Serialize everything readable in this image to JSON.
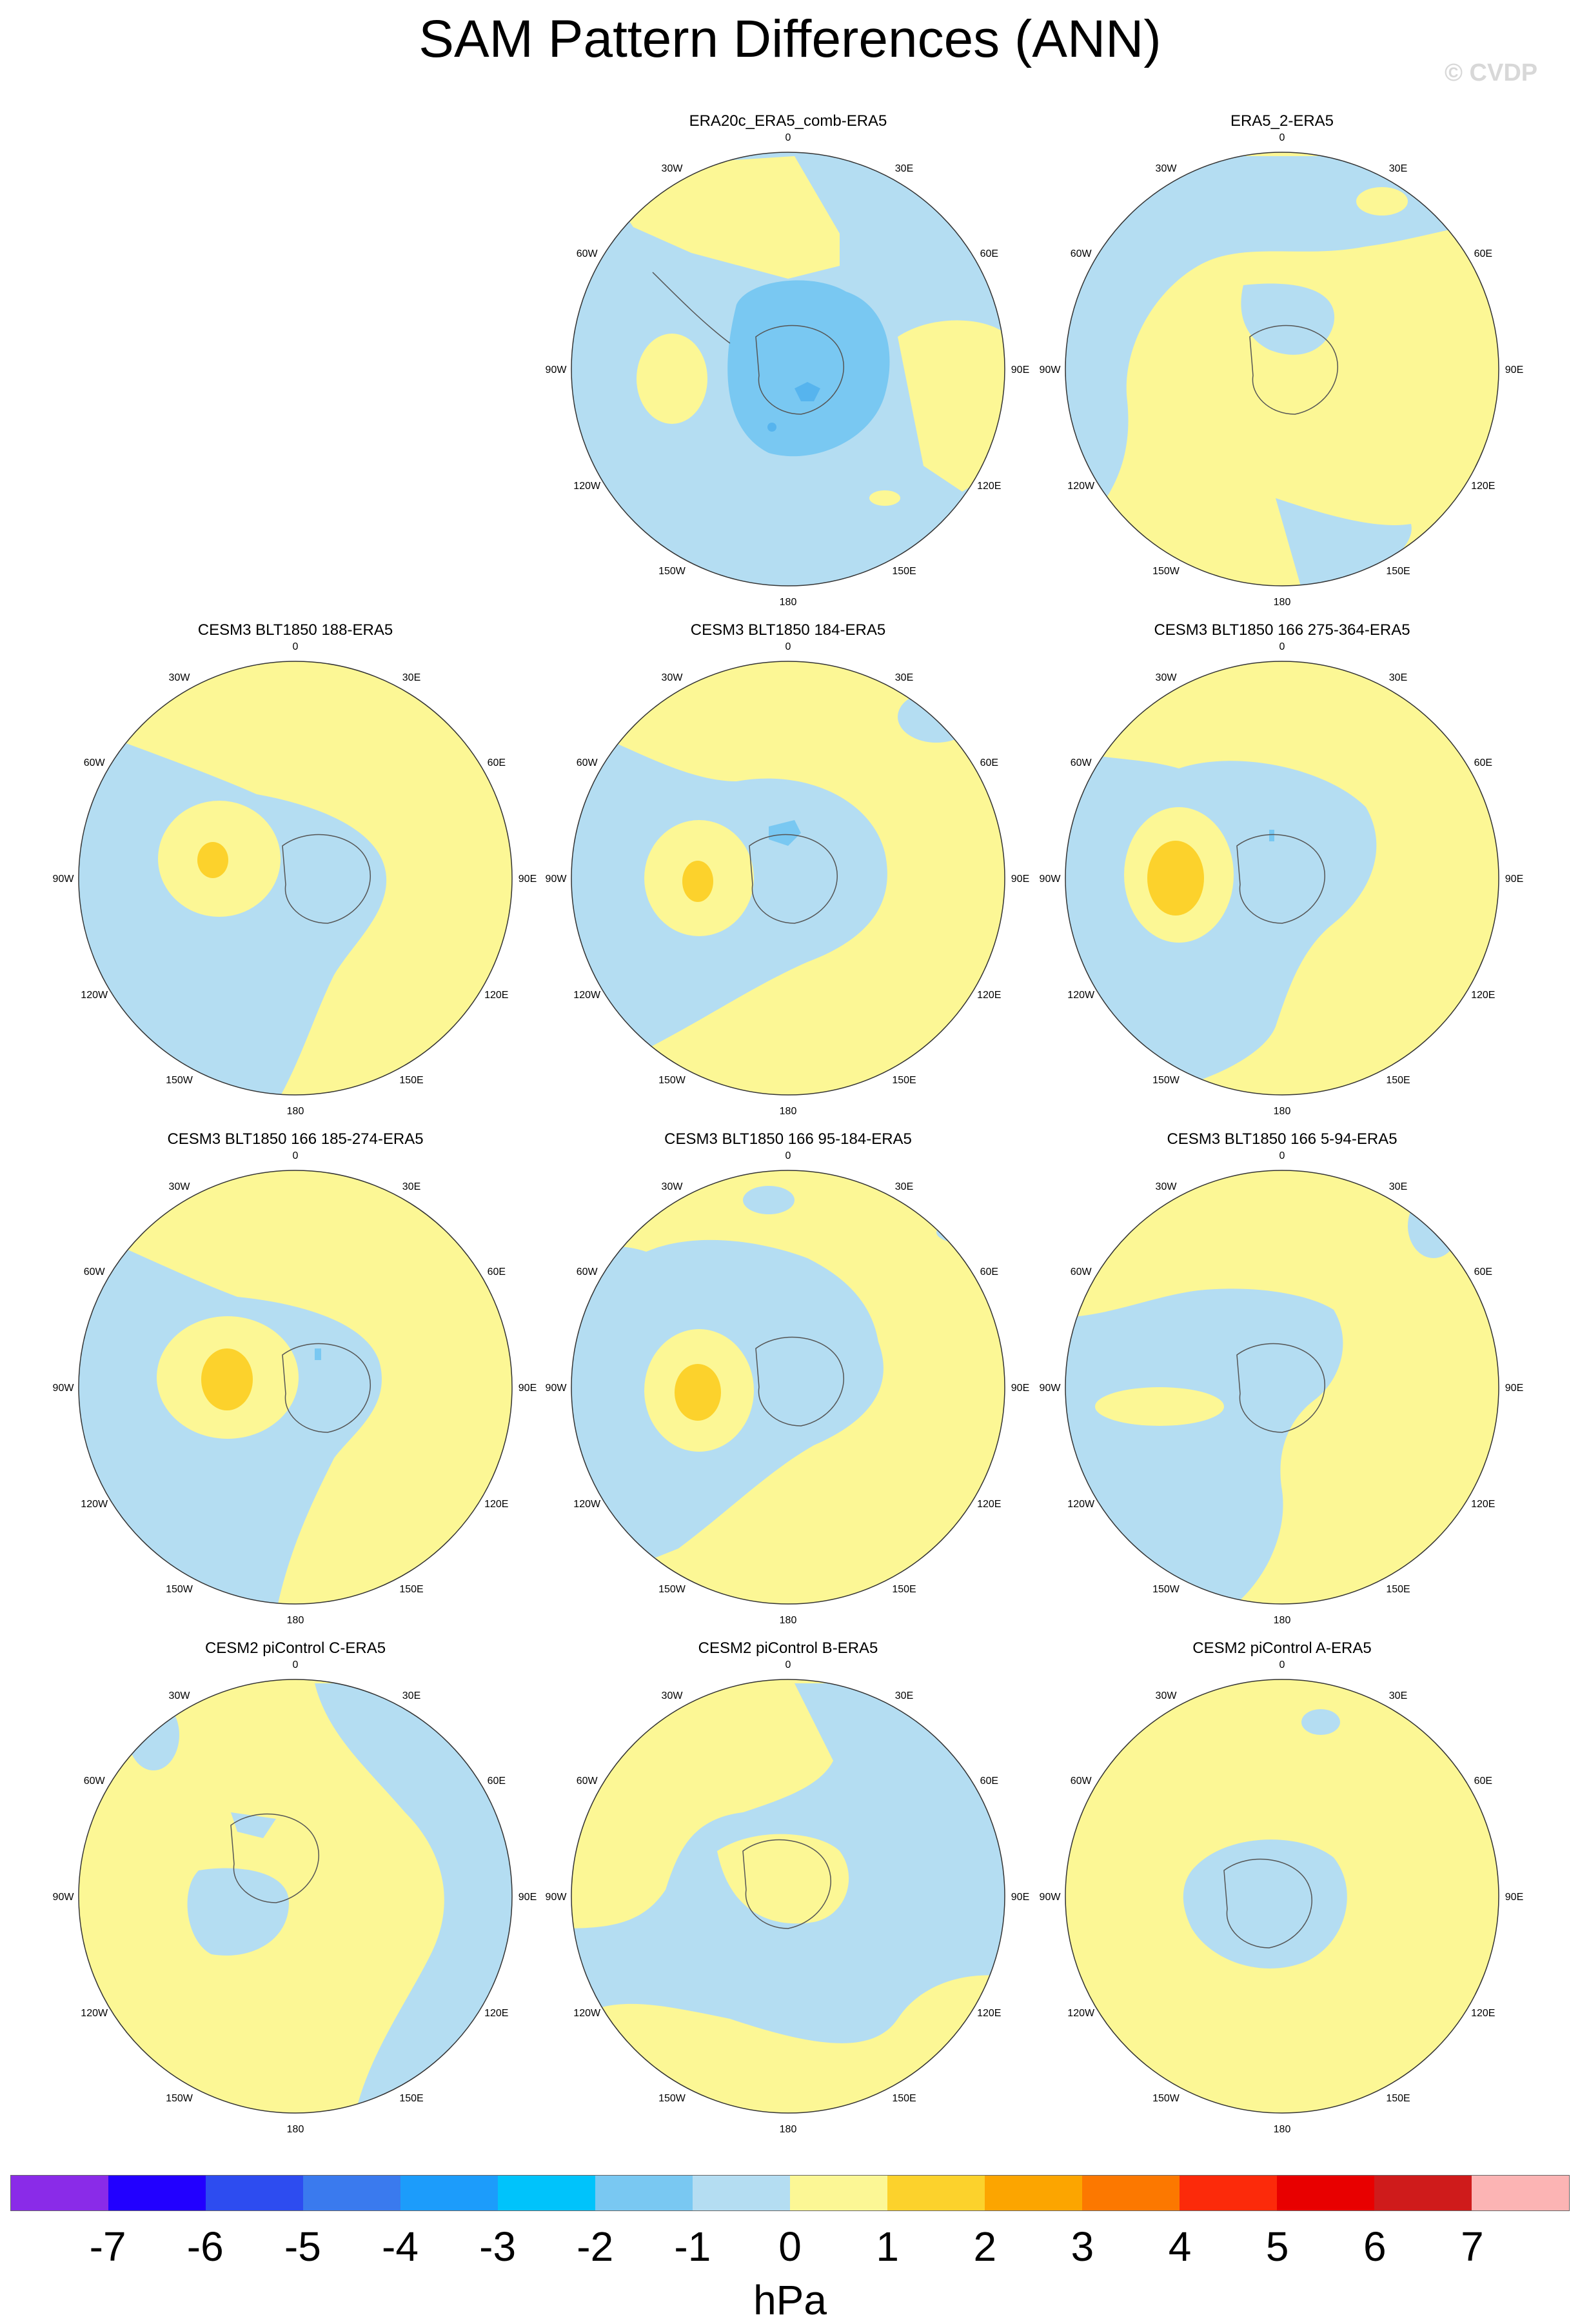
{
  "title": "SAM Pattern Differences (ANN)",
  "credit": "© CVDP",
  "lon_labels": [
    "0",
    "30E",
    "60E",
    "90E",
    "120E",
    "150E",
    "180",
    "150W",
    "120W",
    "90W",
    "60W",
    "30W"
  ],
  "colors": {
    "neg_light": "#b4ddf2",
    "neg_mid": "#79c8f2",
    "neg_dark": "#56b4ee",
    "pos_light": "#fcf795",
    "pos_mid": "#fcd22c",
    "coast": "#555555"
  },
  "panels": [
    {
      "title": "ERA20c_ERA5_comb-ERA5"
    },
    {
      "title": "ERA5_2-ERA5"
    },
    {
      "title": "CESM3 BLT1850 188-ERA5"
    },
    {
      "title": "CESM3 BLT1850 184-ERA5"
    },
    {
      "title": "CESM3 BLT1850 166 275-364-ERA5"
    },
    {
      "title": "CESM3 BLT1850 166 185-274-ERA5"
    },
    {
      "title": "CESM3 BLT1850 166 95-184-ERA5"
    },
    {
      "title": "CESM3 BLT1850 166 5-94-ERA5"
    },
    {
      "title": "CESM2 piControl C-ERA5"
    },
    {
      "title": "CESM2 piControl B-ERA5"
    },
    {
      "title": "CESM2 piControl A-ERA5"
    }
  ],
  "colorbar": {
    "colors": [
      "#8a2be8",
      "#2200ff",
      "#2d4cf0",
      "#3a7aee",
      "#1c9cfb",
      "#00c3fb",
      "#79c8f2",
      "#b4ddf2",
      "#fcf795",
      "#fcd22c",
      "#fca500",
      "#fc7800",
      "#fc2a0a",
      "#e80000",
      "#cf1b1b",
      "#fcb4b4"
    ],
    "tick_labels": [
      "-7",
      "-6",
      "-5",
      "-4",
      "-3",
      "-2",
      "-1",
      "0",
      "1",
      "2",
      "3",
      "4",
      "5",
      "6",
      "7"
    ],
    "units": "hPa"
  }
}
